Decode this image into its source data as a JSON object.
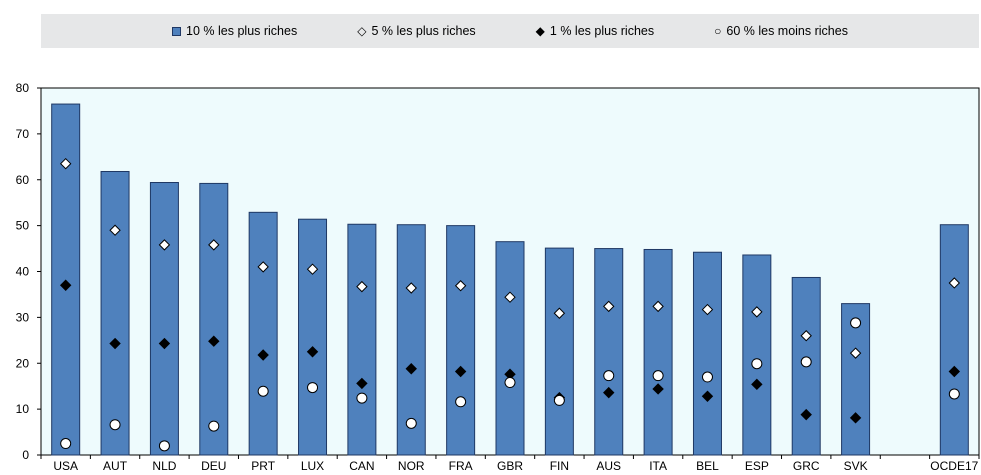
{
  "legend": {
    "bar_label": "10 % les plus riches",
    "top5_label": "5 % les plus riches",
    "top1_label": "1 % les plus riches",
    "bottom60_label": "60 % les moins riches"
  },
  "colors": {
    "bar": "#4f81bd",
    "bar_border": "#1f3864",
    "plot_bg": "#eefbfd",
    "legend_bg": "#e6e7e8"
  },
  "chart_data": {
    "type": "bar",
    "categories": [
      "USA",
      "AUT",
      "NLD",
      "DEU",
      "PRT",
      "LUX",
      "CAN",
      "NOR",
      "FRA",
      "GBR",
      "FIN",
      "AUS",
      "ITA",
      "BEL",
      "ESP",
      "GRC",
      "SVK",
      "",
      "OCDE17"
    ],
    "ylim": [
      0,
      80
    ],
    "yticks": [
      0,
      10,
      20,
      30,
      40,
      50,
      60,
      70,
      80
    ],
    "series": [
      {
        "name": "10 % les plus riches",
        "kind": "bar",
        "values": [
          76.5,
          61.8,
          59.4,
          59.2,
          52.9,
          51.4,
          50.3,
          50.2,
          50.0,
          46.5,
          45.1,
          45.0,
          44.8,
          44.2,
          43.6,
          38.7,
          33.0,
          null,
          50.2
        ]
      },
      {
        "name": "5 % les plus riches",
        "kind": "marker",
        "marker": "diamond-open",
        "values": [
          63.5,
          49.0,
          45.8,
          45.8,
          41.0,
          40.5,
          36.7,
          36.4,
          36.9,
          34.4,
          30.9,
          32.4,
          32.4,
          31.7,
          31.2,
          26.0,
          22.2,
          null,
          37.5
        ]
      },
      {
        "name": "1 % les plus riches",
        "kind": "marker",
        "marker": "diamond-filled",
        "values": [
          37.0,
          24.3,
          24.3,
          24.8,
          21.8,
          22.5,
          15.6,
          18.8,
          18.2,
          17.6,
          12.5,
          13.6,
          14.4,
          12.8,
          15.4,
          8.8,
          8.1,
          null,
          18.2
        ]
      },
      {
        "name": "60 % les moins riches",
        "kind": "marker",
        "marker": "circle-open",
        "values": [
          2.5,
          6.6,
          2.0,
          6.3,
          13.9,
          14.7,
          12.4,
          6.9,
          11.6,
          15.8,
          11.9,
          17.3,
          17.3,
          17.0,
          19.9,
          20.3,
          28.8,
          null,
          13.3
        ]
      }
    ]
  }
}
